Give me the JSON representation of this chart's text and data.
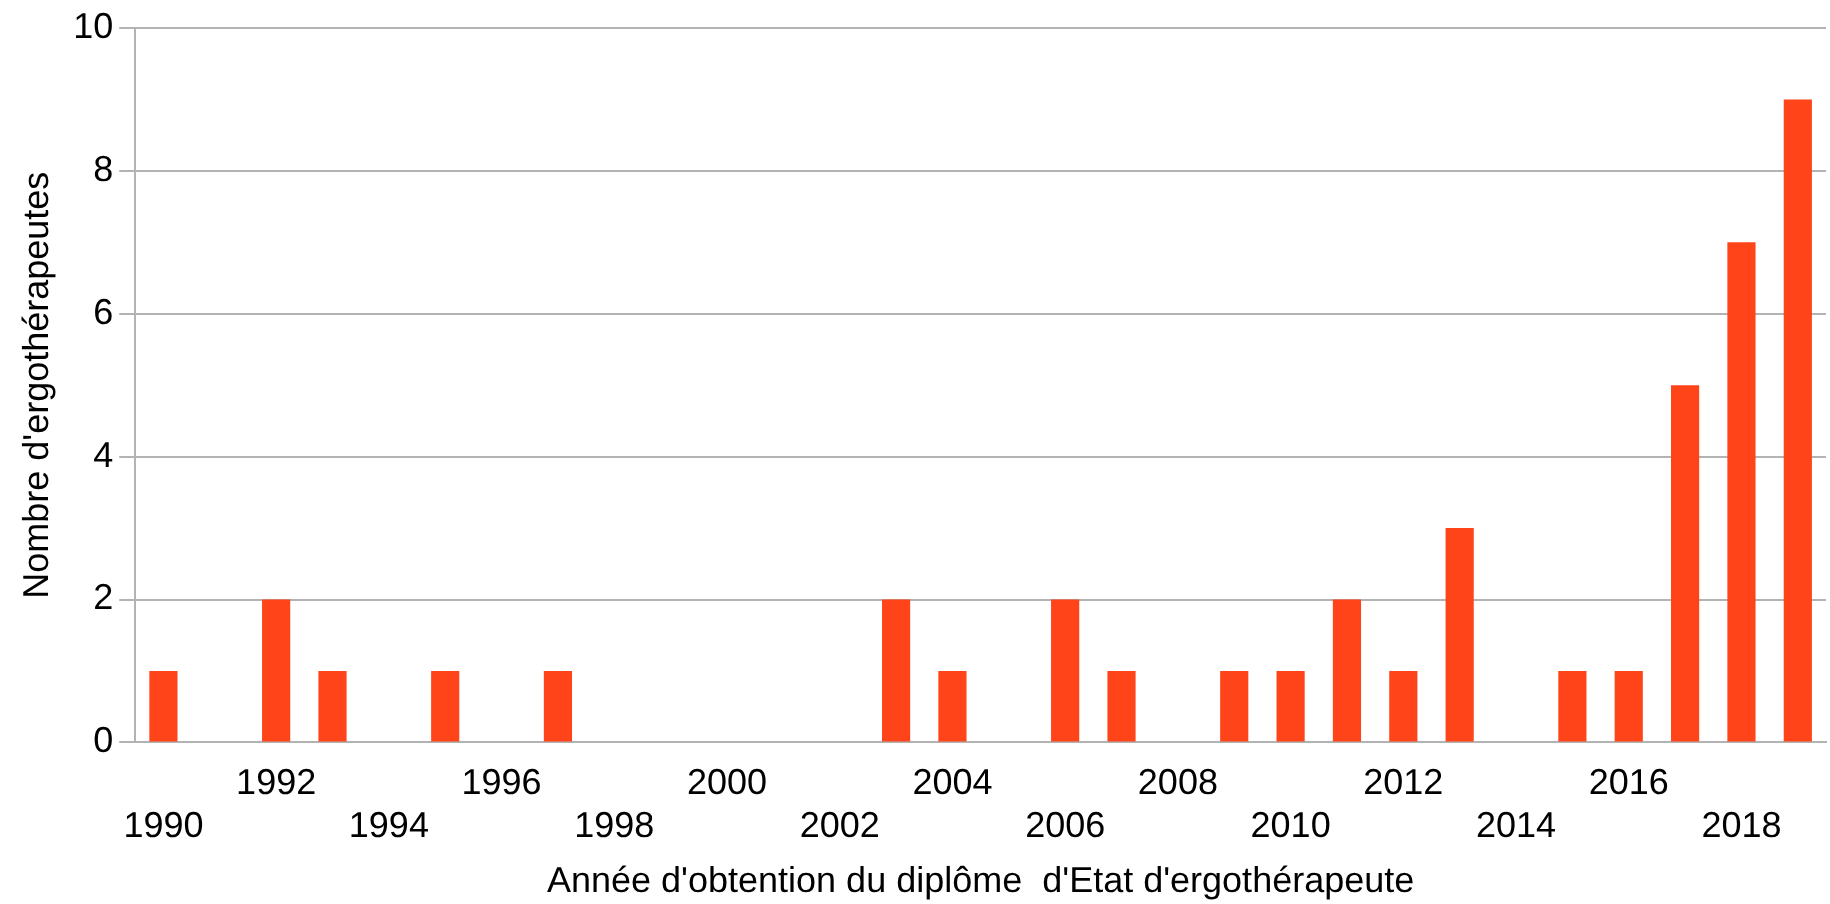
{
  "chart_data": {
    "type": "bar",
    "xlabel": "Année d'obtention du diplôme  d'Etat d'ergothérapeute",
    "ylabel": "Nombre d'ergothérapeutes",
    "categories": [
      "1990",
      null,
      "1992",
      null,
      "1994",
      null,
      "1996",
      null,
      "1998",
      null,
      "2000",
      null,
      "2002",
      null,
      "2004",
      null,
      "2006",
      null,
      "2008",
      null,
      "2010",
      null,
      "2012",
      null,
      "2014",
      null,
      "2016",
      null,
      "2018",
      null
    ],
    "values": [
      1,
      0,
      2,
      1,
      0,
      1,
      0,
      1,
      0,
      0,
      0,
      0,
      0,
      2,
      1,
      0,
      2,
      1,
      0,
      1,
      1,
      2,
      1,
      3,
      0,
      1,
      1,
      5,
      7,
      9
    ],
    "color": "#ff4419",
    "ylim": [
      0,
      10
    ],
    "yticks": [
      0,
      2,
      4,
      6,
      8,
      10
    ],
    "grid": "y"
  }
}
